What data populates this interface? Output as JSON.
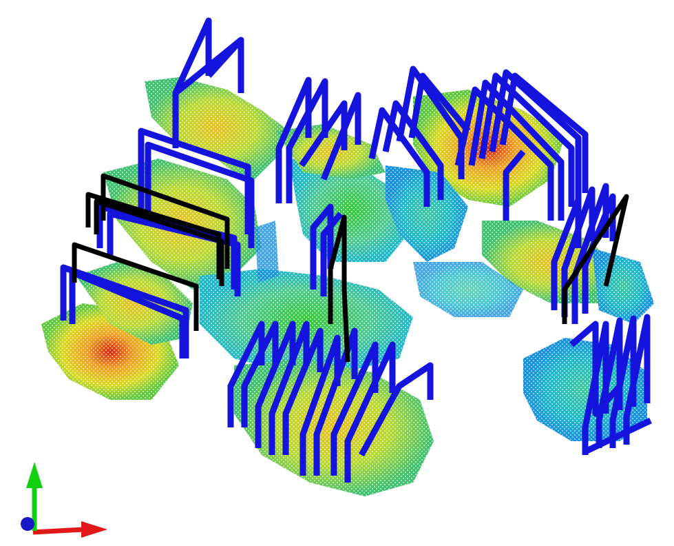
{
  "scene": {
    "background": "#ffffff",
    "palette": {
      "cloud_high": "#d42a10",
      "cloud_mid_high": "#f0a020",
      "cloud_mid": "#d8d820",
      "cloud_mid_low": "#40c040",
      "cloud_low": "#20b8c8",
      "cloud_lowest": "#1890e0",
      "frame_estimated": "#1414dc",
      "frame_reference": "#000000"
    },
    "axes": {
      "x_color": "#e01818",
      "y_color": "#10d010",
      "z_color": "#1818c8"
    }
  }
}
